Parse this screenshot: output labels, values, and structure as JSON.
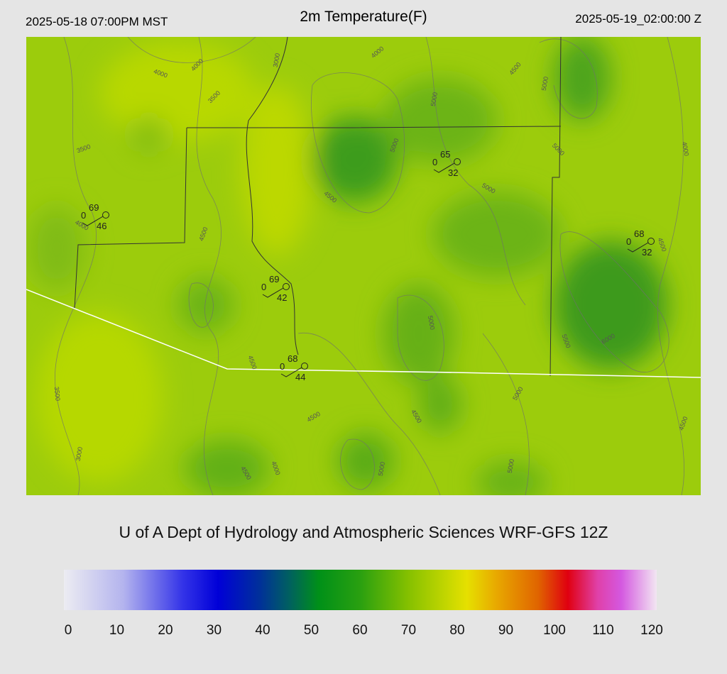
{
  "header": {
    "left": "2025-05-18 07:00PM MST",
    "title": "2m Temperature(F)",
    "right": "2025-05-19_02:00:00 Z"
  },
  "contour_labels": [
    4000,
    4000,
    3000,
    3500,
    3500,
    4000,
    4500,
    5000,
    5000,
    5000,
    5000,
    4000,
    5000,
    4500,
    4500,
    4000,
    4500,
    5000,
    5500,
    6000,
    4500,
    3500,
    5000,
    4500,
    4500,
    4500,
    3000,
    4000,
    4500,
    5000,
    5000
  ],
  "stations": [
    {
      "temp": 69,
      "dewpoint": 46,
      "wind": 0
    },
    {
      "temp": 65,
      "dewpoint": 32,
      "wind": 0
    },
    {
      "temp": 68,
      "dewpoint": 32,
      "wind": 0
    },
    {
      "temp": 69,
      "dewpoint": 42,
      "wind": 0
    },
    {
      "temp": 68,
      "dewpoint": 44,
      "wind": 0
    }
  ],
  "footer": "U of A Dept of Hydrology and Atmospheric Sciences WRF-GFS 12Z",
  "colorbar": {
    "ticks": [
      0,
      10,
      20,
      30,
      40,
      50,
      60,
      70,
      80,
      90,
      100,
      110,
      120
    ],
    "lim": [
      0,
      120
    ]
  }
}
